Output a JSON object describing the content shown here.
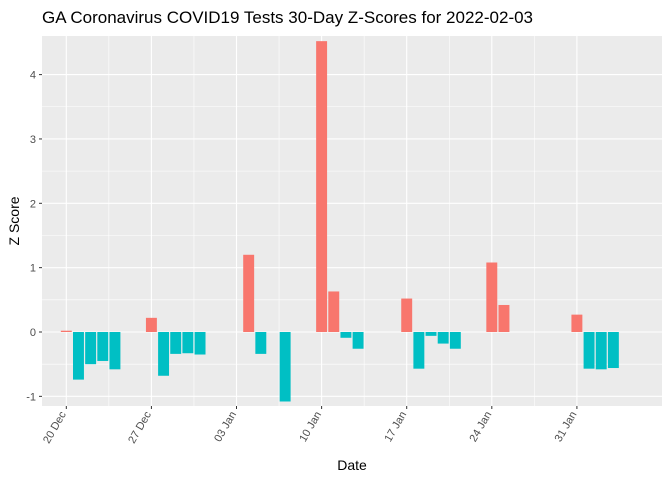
{
  "chart_data": {
    "type": "bar",
    "title": "GA Coronavirus COVID19 Tests 30-Day Z-Scores for 2022-02-03",
    "xlabel": "Date",
    "ylabel": "Z Score",
    "x_tick_labels": [
      "20 Dec",
      "27 Dec",
      "03 Jan",
      "10 Jan",
      "17 Jan",
      "24 Jan",
      "31 Jan"
    ],
    "x_tick_dates": [
      "2021-12-20",
      "2021-12-27",
      "2022-01-03",
      "2022-01-10",
      "2022-01-17",
      "2022-01-24",
      "2022-01-31"
    ],
    "xlim": [
      "2021-12-18",
      "2022-02-07"
    ],
    "y_ticks": [
      -1,
      0,
      1,
      2,
      3,
      4
    ],
    "ylim": [
      -1.15,
      4.6
    ],
    "grid": true,
    "legend": "none",
    "colors": {
      "positive": "#F8766D",
      "negative": "#00BFC4",
      "panel": "#EBEBEB",
      "grid": "#FFFFFF"
    },
    "bars": [
      {
        "date": "2021-12-20",
        "value": 0.02
      },
      {
        "date": "2021-12-21",
        "value": -0.74
      },
      {
        "date": "2021-12-22",
        "value": -0.5
      },
      {
        "date": "2021-12-23",
        "value": -0.45
      },
      {
        "date": "2021-12-24",
        "value": -0.58
      },
      {
        "date": "2021-12-27",
        "value": 0.22
      },
      {
        "date": "2021-12-28",
        "value": -0.68
      },
      {
        "date": "2021-12-29",
        "value": -0.34
      },
      {
        "date": "2021-12-30",
        "value": -0.33
      },
      {
        "date": "2021-12-31",
        "value": -0.35
      },
      {
        "date": "2022-01-04",
        "value": 1.2
      },
      {
        "date": "2022-01-05",
        "value": -0.34
      },
      {
        "date": "2022-01-07",
        "value": -1.08
      },
      {
        "date": "2022-01-10",
        "value": 4.52
      },
      {
        "date": "2022-01-11",
        "value": 0.63
      },
      {
        "date": "2022-01-12",
        "value": -0.09
      },
      {
        "date": "2022-01-13",
        "value": -0.26
      },
      {
        "date": "2022-01-17",
        "value": 0.52
      },
      {
        "date": "2022-01-18",
        "value": -0.57
      },
      {
        "date": "2022-01-19",
        "value": -0.06
      },
      {
        "date": "2022-01-20",
        "value": -0.18
      },
      {
        "date": "2022-01-21",
        "value": -0.26
      },
      {
        "date": "2022-01-24",
        "value": 1.08
      },
      {
        "date": "2022-01-25",
        "value": 0.42
      },
      {
        "date": "2022-01-31",
        "value": 0.27
      },
      {
        "date": "2022-02-01",
        "value": -0.57
      },
      {
        "date": "2022-02-02",
        "value": -0.58
      },
      {
        "date": "2022-02-03",
        "value": -0.56
      }
    ]
  }
}
